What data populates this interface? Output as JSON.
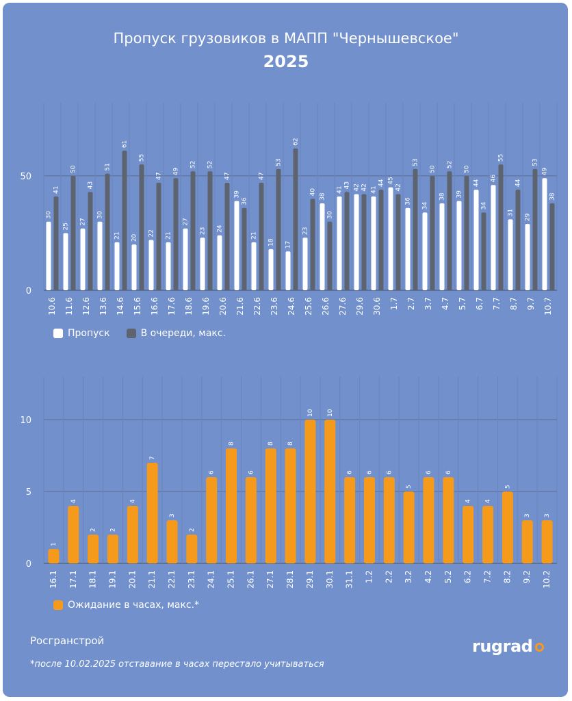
{
  "title": "Пропуск грузовиков в МАПП \"Чернышевское\"",
  "subtitle": "2025",
  "source": "Росгранстрой",
  "footnote": "*после 10.02.2025 отставание в часах перестало учитываться",
  "logo_text": "rugrad",
  "colors": {
    "background": "#7190cc",
    "passed": "#ffffff",
    "queue": "#5d6470",
    "wait": "#f59a1b"
  },
  "chart_data": [
    {
      "type": "bar",
      "categories": [
        "10.6",
        "11.6",
        "12.6",
        "13.6",
        "14.6",
        "15.6",
        "16.6",
        "17.6",
        "18.6",
        "19.6",
        "20.6",
        "21.6",
        "22.6",
        "23.6",
        "24.6",
        "25.6",
        "26.6",
        "27.6",
        "29.6",
        "30.6",
        "1.7",
        "2.7",
        "3.7",
        "4.7",
        "5.7",
        "6.7",
        "7.7",
        "8.7",
        "9.7",
        "10.7"
      ],
      "series": [
        {
          "name": "Пропуск",
          "color": "#ffffff",
          "values": [
            30,
            25,
            27,
            30,
            21,
            20,
            22,
            21,
            27,
            23,
            24,
            39,
            21,
            18,
            17,
            23,
            38,
            41,
            42,
            41,
            45,
            36,
            34,
            38,
            39,
            44,
            46,
            31,
            29,
            49
          ]
        },
        {
          "name": "В очереди, макс.",
          "color": "#5d6470",
          "values": [
            41,
            50,
            43,
            51,
            61,
            55,
            47,
            49,
            52,
            52,
            47,
            36,
            47,
            53,
            62,
            40,
            30,
            43,
            42,
            44,
            42,
            53,
            50,
            52,
            50,
            34,
            55,
            44,
            53,
            38
          ]
        }
      ],
      "yticks": [
        "0",
        "50"
      ],
      "ylim": [
        0,
        82
      ],
      "grid": true,
      "legend_position": "bottom-left"
    },
    {
      "type": "bar",
      "categories": [
        "16.1",
        "17.1",
        "18.1",
        "19.1",
        "20.1",
        "21.1",
        "22.1",
        "23.1",
        "24.1",
        "25.1",
        "26.1",
        "27.1",
        "28.1",
        "29.1",
        "30.1",
        "31.1",
        "1.2",
        "2.2",
        "3.2",
        "4.2",
        "5.2",
        "6.2",
        "7.2",
        "8.2",
        "9.2",
        "10.2"
      ],
      "series": [
        {
          "name": "Ожидание в часах, макс.*",
          "color": "#f59a1b",
          "values": [
            1,
            4,
            2,
            2,
            4,
            7,
            3,
            2,
            6,
            8,
            6,
            8,
            8,
            10,
            10,
            6,
            6,
            6,
            5,
            6,
            6,
            4,
            4,
            5,
            3,
            3
          ]
        }
      ],
      "yticks": [
        "0",
        "5",
        "10"
      ],
      "ylim": [
        0,
        13
      ],
      "grid": true,
      "legend_position": "bottom-left"
    }
  ]
}
